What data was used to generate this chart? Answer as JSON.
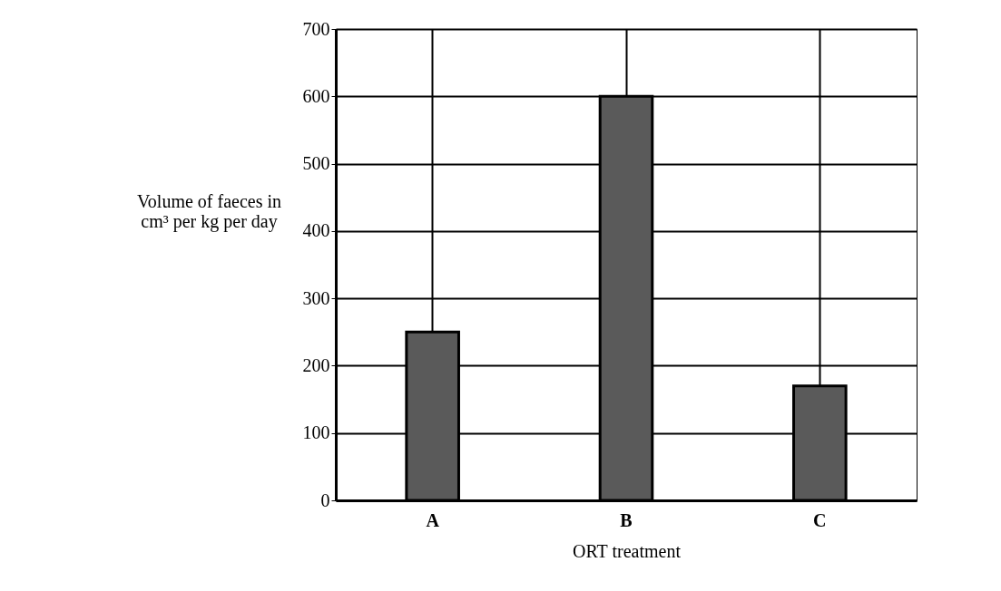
{
  "chart_data": {
    "type": "bar",
    "xlabel": "ORT treatment",
    "ylabel": "Volume of faeces in cm³ per kg per day",
    "categories": [
      "A",
      "B",
      "C"
    ],
    "values": [
      250,
      600,
      170
    ],
    "color": "#5a5a5a",
    "ylim": [
      0,
      700
    ],
    "yticks": [
      0,
      100,
      200,
      300,
      400,
      500,
      600,
      700
    ],
    "grid": true
  }
}
